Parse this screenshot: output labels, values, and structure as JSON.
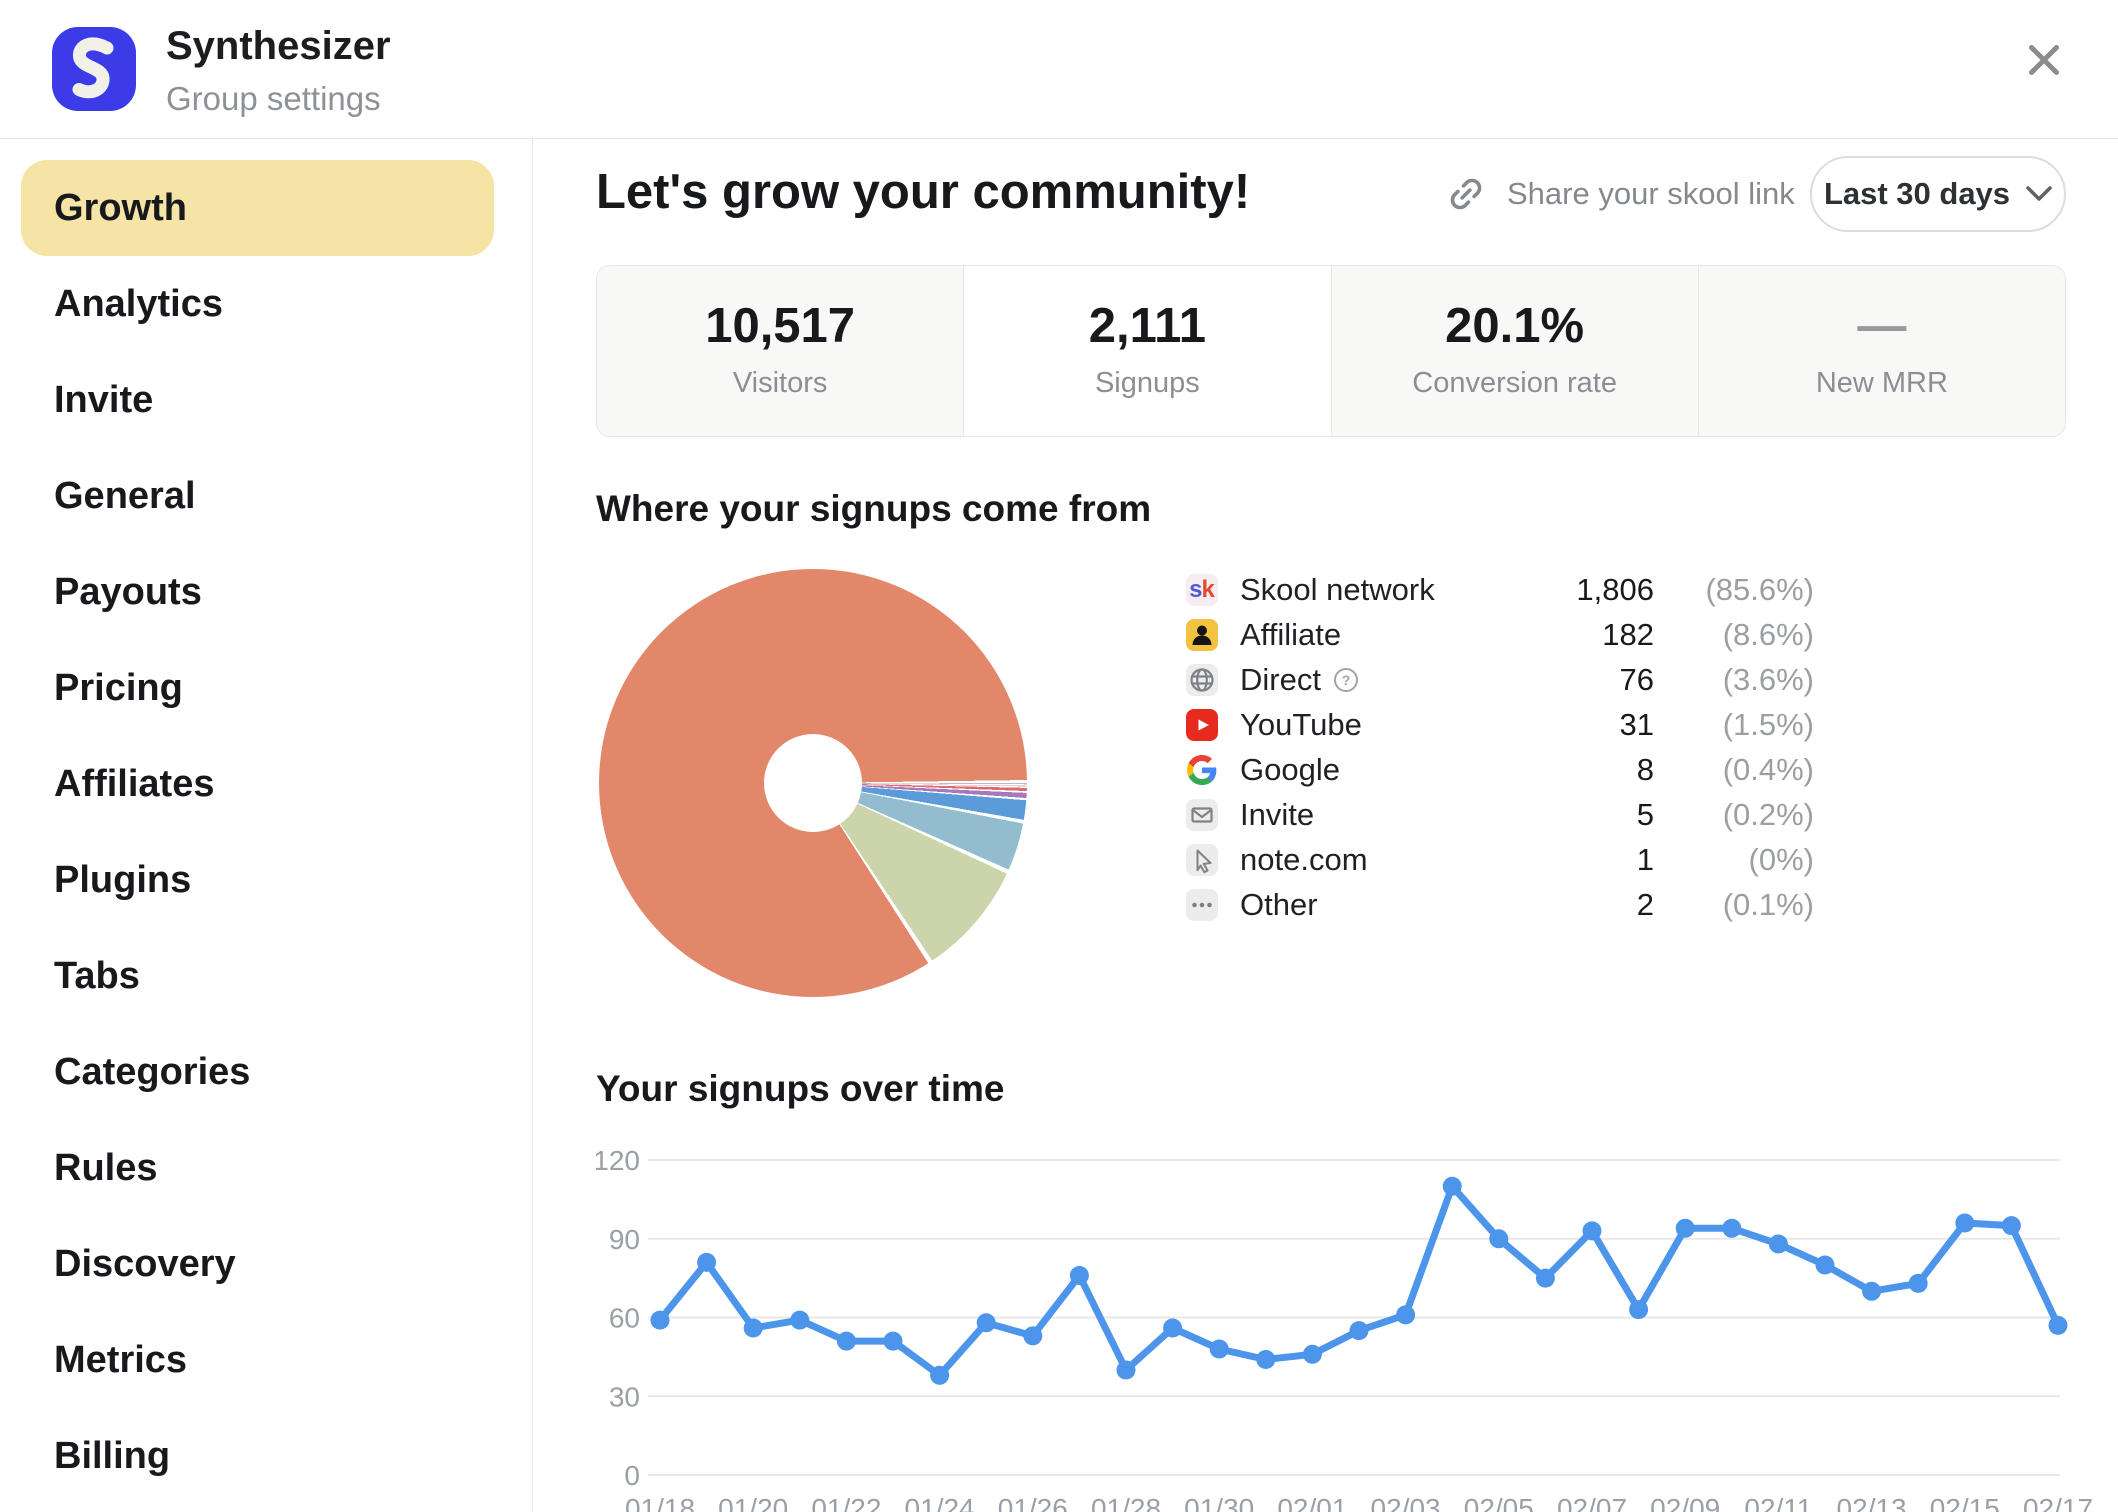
{
  "header": {
    "title": "Synthesizer",
    "subtitle": "Group settings"
  },
  "sidebar": {
    "items": [
      {
        "label": "Growth",
        "active": true
      },
      {
        "label": "Analytics"
      },
      {
        "label": "Invite"
      },
      {
        "label": "General"
      },
      {
        "label": "Payouts"
      },
      {
        "label": "Pricing"
      },
      {
        "label": "Affiliates"
      },
      {
        "label": "Plugins"
      },
      {
        "label": "Tabs"
      },
      {
        "label": "Categories"
      },
      {
        "label": "Rules"
      },
      {
        "label": "Discovery"
      },
      {
        "label": "Metrics"
      },
      {
        "label": "Billing"
      }
    ]
  },
  "toolbar": {
    "heading": "Let's grow your community!",
    "share_label": "Share your skool link",
    "range_label": "Last 30 days"
  },
  "stats": [
    {
      "value": "10,517",
      "label": "Visitors"
    },
    {
      "value": "2,111",
      "label": "Signups",
      "selected": true
    },
    {
      "value": "20.1%",
      "label": "Conversion rate"
    },
    {
      "value": "—",
      "label": "New MRR",
      "muted": true
    }
  ],
  "colors": {
    "brand_blue": "#3b3be8",
    "sidebar_highlight": "#f6e3a6",
    "line_blue": "#4c95ea",
    "grid": "#e8e8e8",
    "axis_text": "#9aa0a6"
  },
  "chart_data": [
    {
      "type": "pie",
      "donut": true,
      "title": "Where your signups come from",
      "legend_position": "right",
      "slices": [
        {
          "label": "Skool network",
          "value": 1806,
          "value_label": "1,806",
          "pct_label": "(85.6%)",
          "color": "#e3876a",
          "icon": "skool-icon"
        },
        {
          "label": "Affiliate",
          "value": 182,
          "value_label": "182",
          "pct_label": "(8.6%)",
          "color": "#cbd4aa",
          "icon": "affiliate-icon"
        },
        {
          "label": "Direct",
          "value": 76,
          "value_label": "76",
          "pct_label": "(3.6%)",
          "color": "#92bdcf",
          "icon": "globe-icon",
          "help": true
        },
        {
          "label": "YouTube",
          "value": 31,
          "value_label": "31",
          "pct_label": "(1.5%)",
          "color": "#5b9bd9",
          "icon": "youtube-icon"
        },
        {
          "label": "Google",
          "value": 8,
          "value_label": "8",
          "pct_label": "(0.4%)",
          "color": "#a878bd",
          "icon": "google-icon"
        },
        {
          "label": "Invite",
          "value": 5,
          "value_label": "5",
          "pct_label": "(0.2%)",
          "color": "#d96d6d",
          "icon": "invite-icon"
        },
        {
          "label": "note.com",
          "value": 1,
          "value_label": "1",
          "pct_label": "(0%)",
          "color": "#e89bb4",
          "icon": "cursor-icon"
        },
        {
          "label": "Other",
          "value": 2,
          "value_label": "2",
          "pct_label": "(0.1%)",
          "color": "#b9bdc1",
          "icon": "other-icon"
        }
      ]
    },
    {
      "type": "line",
      "title": "Your signups over time",
      "color": "#4c95ea",
      "ylim": [
        0,
        120
      ],
      "yticks": [
        120,
        90,
        60,
        30,
        0
      ],
      "grid": true,
      "xtick_every": 2,
      "x": [
        "01/18",
        "01/19",
        "01/20",
        "01/21",
        "01/22",
        "01/23",
        "01/24",
        "01/25",
        "01/26",
        "01/27",
        "01/28",
        "01/29",
        "01/30",
        "01/31",
        "02/01",
        "02/02",
        "02/03",
        "02/04",
        "02/05",
        "02/06",
        "02/07",
        "02/08",
        "02/09",
        "02/10",
        "02/11",
        "02/12",
        "02/13",
        "02/14",
        "02/15",
        "02/16",
        "02/17"
      ],
      "values": [
        59,
        81,
        56,
        59,
        51,
        51,
        38,
        58,
        53,
        76,
        40,
        56,
        48,
        44,
        46,
        55,
        61,
        110,
        90,
        75,
        93,
        63,
        94,
        94,
        88,
        80,
        70,
        73,
        96,
        95,
        57
      ]
    }
  ]
}
